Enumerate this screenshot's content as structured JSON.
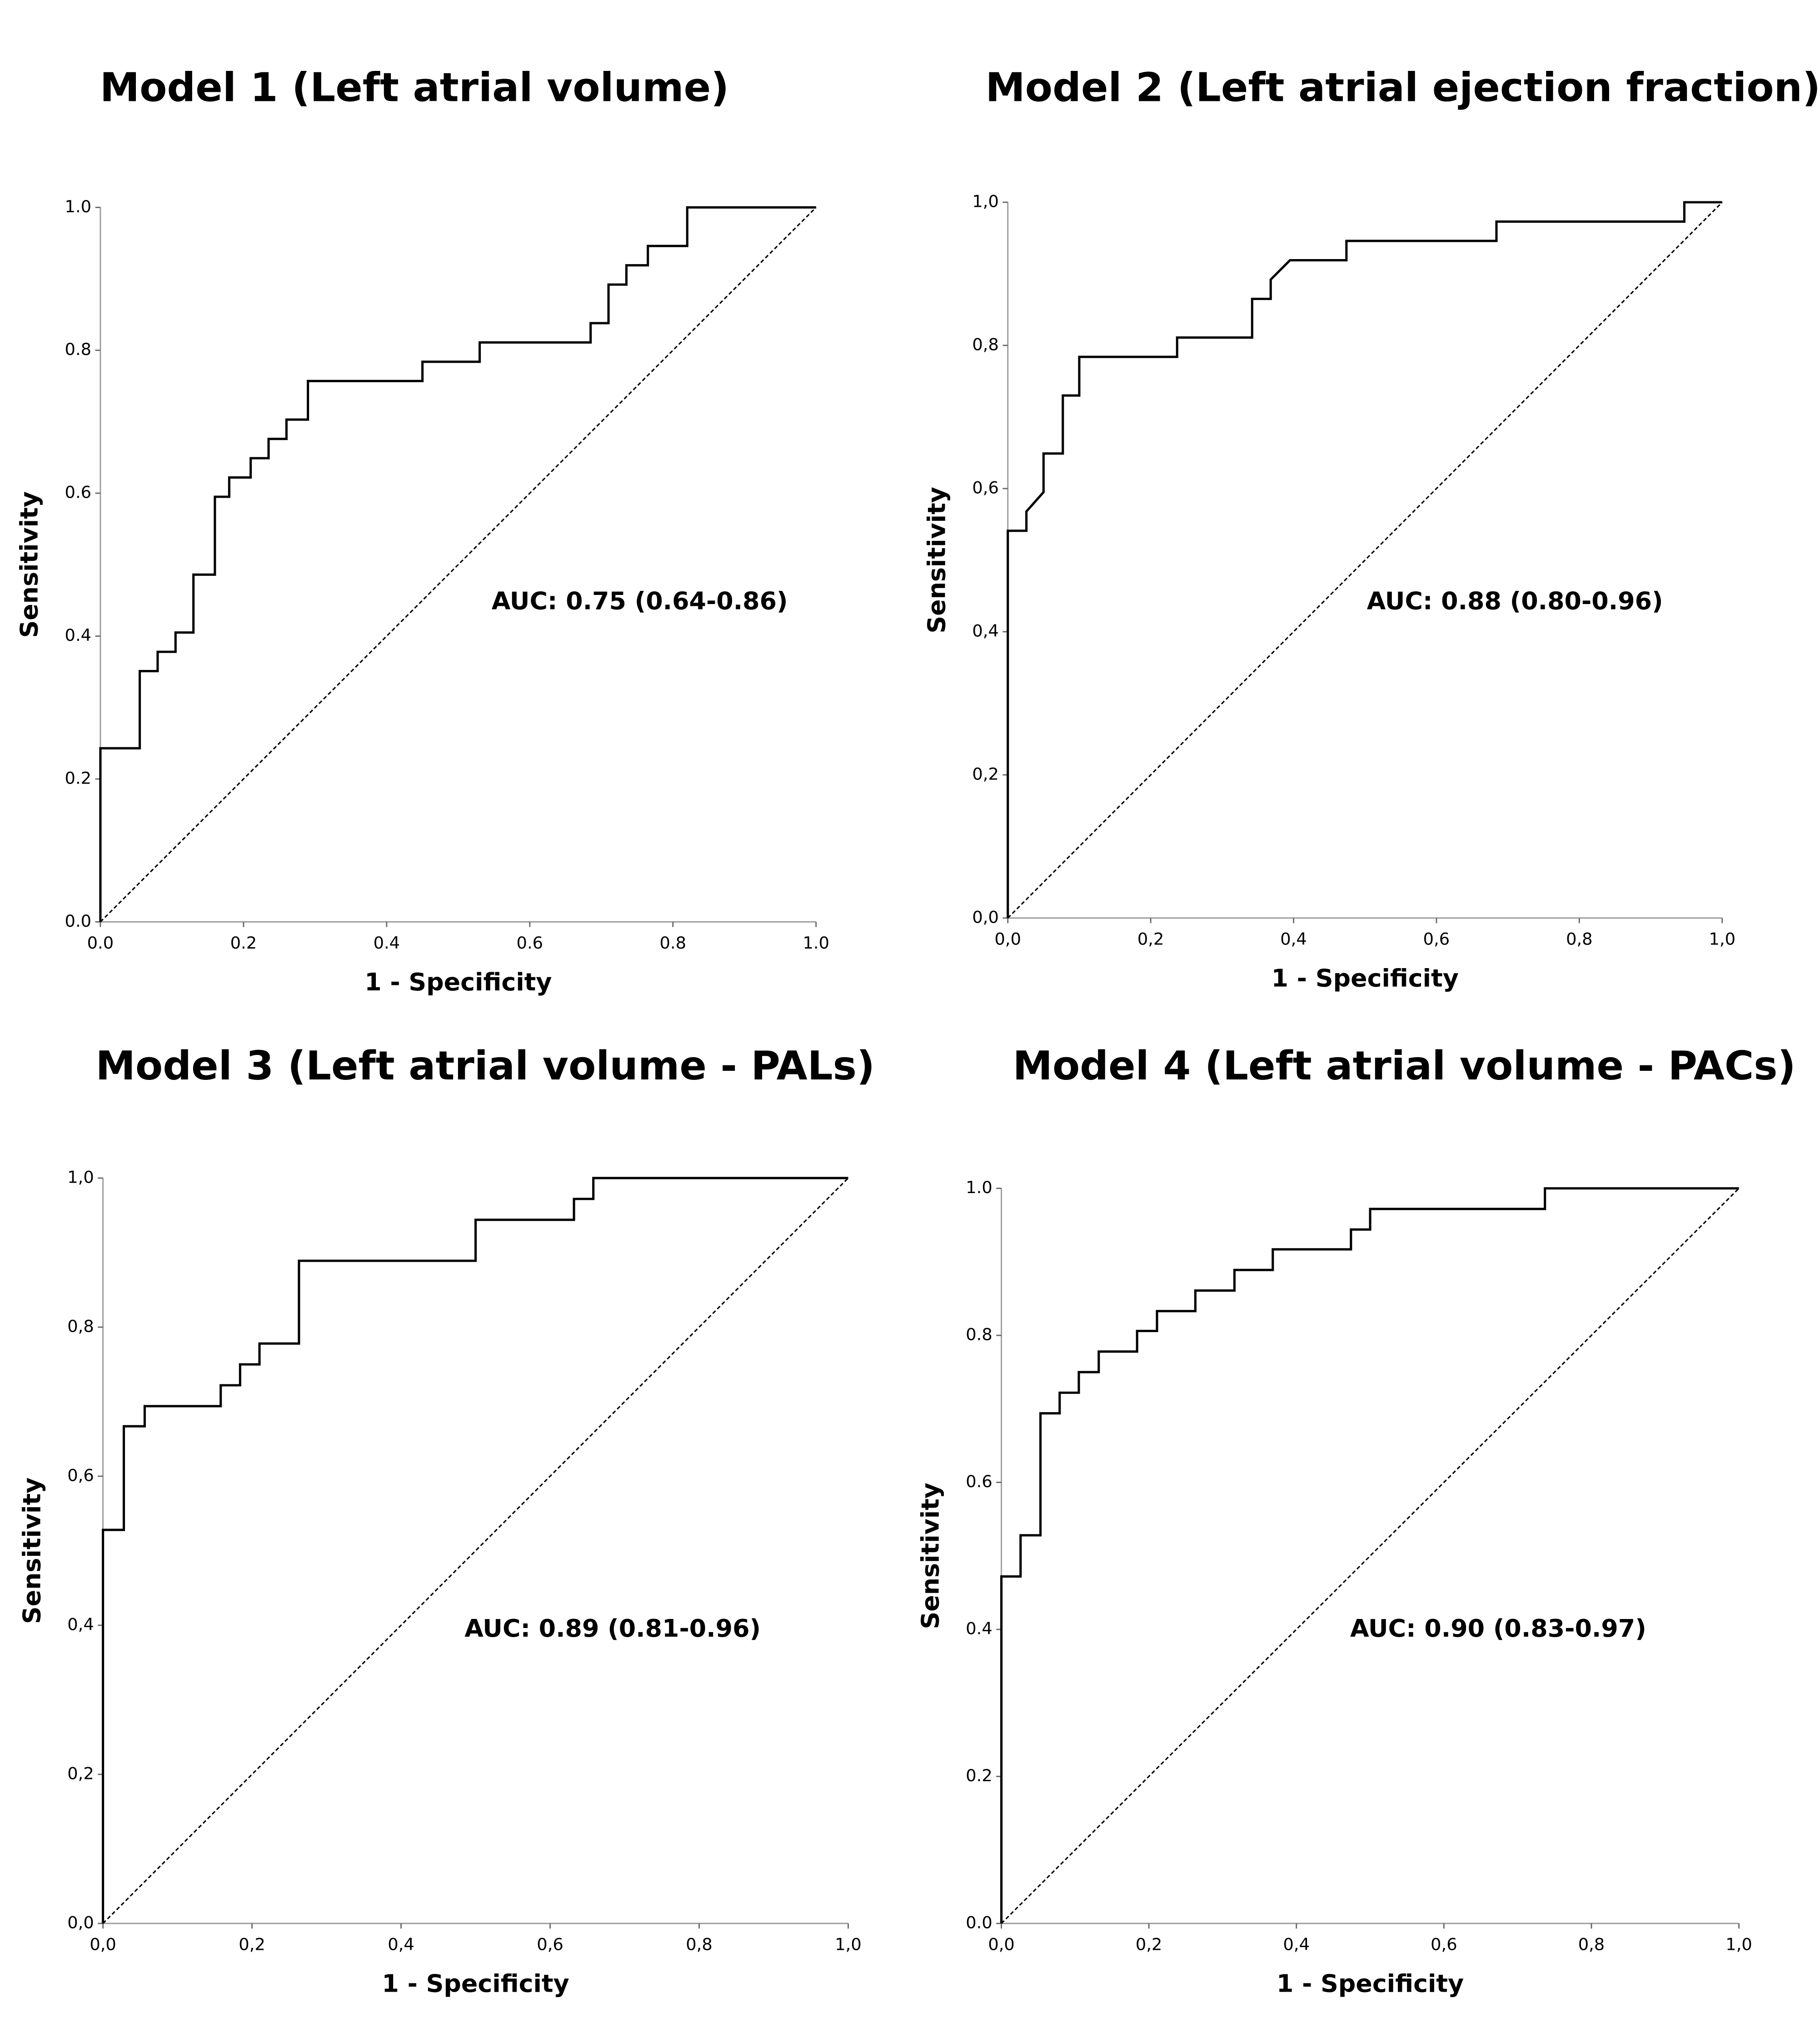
{
  "chart_data": [
    {
      "type": "line",
      "title": "Model 1 (Left atrial volume)",
      "x_label": "1 - Specificity",
      "y_label": "Sensitivity",
      "annotation": "AUC: 0.75 (0.64-0.86)",
      "xlim": [
        0,
        1
      ],
      "ylim": [
        0,
        1
      ],
      "xticks": [
        {
          "value": 0,
          "label": "0.0"
        },
        0.2,
        0.4,
        0.6,
        0.8,
        {
          "value": 1,
          "label": "1.0"
        }
      ],
      "yticks": [
        {
          "value": 0,
          "label": "0.0"
        },
        0.2,
        0.4,
        0.6,
        0.8,
        {
          "value": 1,
          "label": "1.0"
        }
      ],
      "series": [
        {
          "color": "#000000",
          "x": [
            0,
            0,
            0.055,
            0.055,
            0.08,
            0.08,
            0.105,
            0.105,
            0.13,
            0.13,
            0.16,
            0.16,
            0.18,
            0.18,
            0.21,
            0.21,
            0.235,
            0.235,
            0.26,
            0.26,
            0.29,
            0.29,
            0.45,
            0.45,
            0.53,
            0.53,
            0.685,
            0.685,
            0.71,
            0.71,
            0.735,
            0.735,
            0.765,
            0.765,
            0.82,
            0.82,
            1
          ],
          "values": [
            0,
            0.243,
            0.243,
            0.351,
            0.351,
            0.378,
            0.378,
            0.405,
            0.405,
            0.486,
            0.486,
            0.595,
            0.595,
            0.622,
            0.622,
            0.649,
            0.649,
            0.676,
            0.676,
            0.703,
            0.703,
            0.757,
            0.757,
            0.784,
            0.784,
            0.811,
            0.811,
            0.838,
            0.838,
            0.892,
            0.892,
            0.919,
            0.919,
            0.946,
            0.946,
            1,
            1
          ]
        },
        {
          "color": "#000000",
          "dashed": true,
          "x": [
            0,
            1
          ],
          "values": [
            0,
            1
          ]
        }
      ]
    },
    {
      "type": "line",
      "title": "Model 2 (Left atrial ejection fraction)",
      "x_label": "1 - Specificity",
      "y_label": "Sensitivity",
      "annotation": "AUC: 0.88 (0.80-0.96)",
      "xlim": [
        0,
        1
      ],
      "ylim": [
        0,
        1
      ],
      "xticks": [
        {
          "value": 0,
          "label": "0,0"
        },
        {
          "value": 0.2,
          "label": "0,2"
        },
        {
          "value": 0.4,
          "label": "0,4"
        },
        {
          "value": 0.6,
          "label": "0,6"
        },
        {
          "value": 0.8,
          "label": "0,8"
        },
        {
          "value": 1,
          "label": "1,0"
        }
      ],
      "yticks": [
        {
          "value": 0,
          "label": "0,0"
        },
        {
          "value": 0.2,
          "label": "0,2"
        },
        {
          "value": 0.4,
          "label": "0,4"
        },
        {
          "value": 0.6,
          "label": "0,6"
        },
        {
          "value": 0.8,
          "label": "0,8"
        },
        {
          "value": 1,
          "label": "1,0"
        }
      ],
      "series": [
        {
          "color": "#000000",
          "x": [
            0,
            0,
            0.026,
            0.026,
            0.05,
            0.05,
            0.077,
            0.077,
            0.1,
            0.1,
            0.237,
            0.237,
            0.342,
            0.342,
            0.368,
            0.368,
            0.395,
            0.474,
            0.474,
            0.684,
            0.684,
            0.947,
            0.947,
            1
          ],
          "values": [
            0,
            0.541,
            0.541,
            0.568,
            0.595,
            0.649,
            0.649,
            0.73,
            0.73,
            0.784,
            0.784,
            0.811,
            0.811,
            0.865,
            0.865,
            0.892,
            0.919,
            0.919,
            0.946,
            0.946,
            0.973,
            0.973,
            1,
            1
          ]
        },
        {
          "color": "#000000",
          "dashed": true,
          "x": [
            0,
            1
          ],
          "values": [
            0,
            1
          ]
        }
      ]
    },
    {
      "type": "line",
      "title": "Model 3 (Left atrial volume - PALs)",
      "x_label": "1 - Specificity",
      "y_label": "Sensitivity",
      "annotation": "AUC: 0.89 (0.81-0.96)",
      "xlim": [
        0,
        1
      ],
      "ylim": [
        0,
        1
      ],
      "xticks": [
        {
          "value": 0,
          "label": "0,0"
        },
        {
          "value": 0.2,
          "label": "0,2"
        },
        {
          "value": 0.4,
          "label": "0,4"
        },
        {
          "value": 0.6,
          "label": "0,6"
        },
        {
          "value": 0.8,
          "label": "0,8"
        },
        {
          "value": 1,
          "label": "1,0"
        }
      ],
      "yticks": [
        {
          "value": 0,
          "label": "0,0"
        },
        {
          "value": 0.2,
          "label": "0,2"
        },
        {
          "value": 0.4,
          "label": "0,4"
        },
        {
          "value": 0.6,
          "label": "0,6"
        },
        {
          "value": 0.8,
          "label": "0,8"
        },
        {
          "value": 1,
          "label": "1,0"
        }
      ],
      "series": [
        {
          "color": "#000000",
          "x": [
            0,
            0,
            0.028,
            0.028,
            0.056,
            0.056,
            0.158,
            0.158,
            0.184,
            0.184,
            0.21,
            0.21,
            0.263,
            0.263,
            0.5,
            0.5,
            0.632,
            0.632,
            0.658,
            0.658,
            1
          ],
          "values": [
            0,
            0.528,
            0.528,
            0.667,
            0.667,
            0.694,
            0.694,
            0.722,
            0.722,
            0.75,
            0.75,
            0.778,
            0.778,
            0.889,
            0.889,
            0.944,
            0.944,
            0.972,
            0.972,
            1,
            1
          ]
        },
        {
          "color": "#000000",
          "dashed": true,
          "x": [
            0,
            1
          ],
          "values": [
            0,
            1
          ]
        }
      ]
    },
    {
      "type": "line",
      "title": "Model 4 (Left atrial volume - PACs)",
      "x_label": "1 - Specificity",
      "y_label": "Sensitivity",
      "annotation": "AUC: 0.90 (0.83-0.97)",
      "xlim": [
        0,
        1
      ],
      "ylim": [
        0,
        1
      ],
      "xticks": [
        {
          "value": 0,
          "label": "0,0"
        },
        {
          "value": 0.2,
          "label": "0,2"
        },
        {
          "value": 0.4,
          "label": "0,4"
        },
        {
          "value": 0.6,
          "label": "0,6"
        },
        {
          "value": 0.8,
          "label": "0,8"
        },
        {
          "value": 1,
          "label": "1,0"
        }
      ],
      "yticks": [
        {
          "value": 0,
          "label": "0.0"
        },
        0.2,
        0.4,
        0.6,
        0.8,
        {
          "value": 1,
          "label": "1.0"
        }
      ],
      "series": [
        {
          "color": "#000000",
          "x": [
            0,
            0,
            0.026,
            0.026,
            0.053,
            0.053,
            0.079,
            0.079,
            0.105,
            0.105,
            0.132,
            0.132,
            0.184,
            0.184,
            0.211,
            0.211,
            0.263,
            0.263,
            0.316,
            0.316,
            0.368,
            0.368,
            0.474,
            0.474,
            0.5,
            0.5,
            0.737,
            0.737,
            1
          ],
          "values": [
            0,
            0.472,
            0.472,
            0.528,
            0.528,
            0.694,
            0.694,
            0.722,
            0.722,
            0.75,
            0.75,
            0.778,
            0.778,
            0.806,
            0.806,
            0.833,
            0.833,
            0.861,
            0.861,
            0.889,
            0.889,
            0.917,
            0.917,
            0.944,
            0.944,
            0.972,
            0.972,
            1,
            1
          ]
        },
        {
          "color": "#000000",
          "dashed": true,
          "x": [
            0,
            1
          ],
          "values": [
            0,
            1
          ]
        }
      ]
    }
  ]
}
